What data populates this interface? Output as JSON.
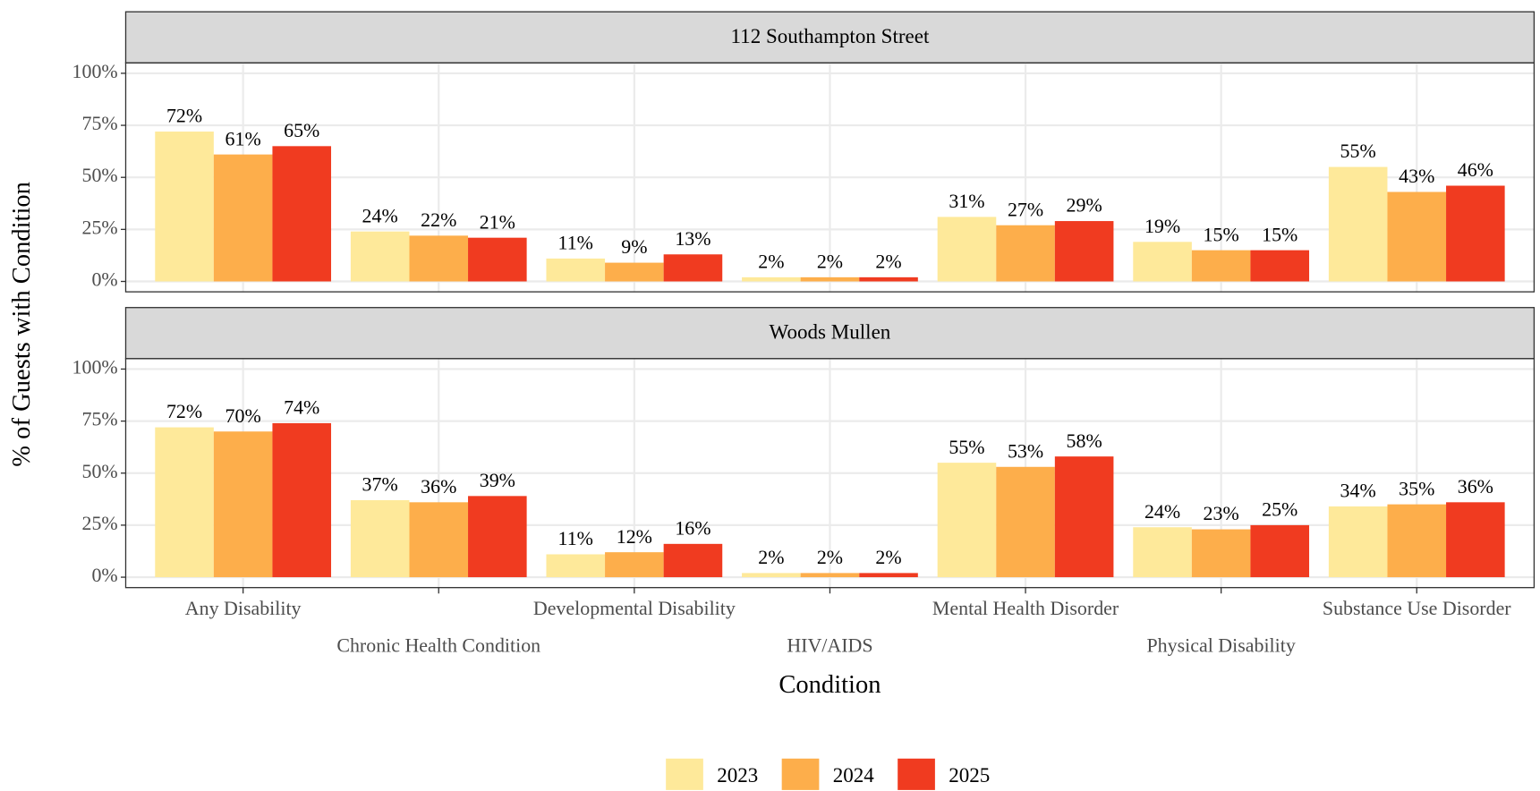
{
  "chart_data": {
    "type": "bar",
    "y_label": "% of Guests with Condition",
    "x_label": "Condition",
    "categories": [
      "Any Disability",
      "Chronic Health Condition",
      "Developmental Disability",
      "HIV/AIDS",
      "Mental Health Disorder",
      "Physical Disability",
      "Substance Use Disorder"
    ],
    "series": [
      {
        "name": "2023",
        "color": "#fee99a"
      },
      {
        "name": "2024",
        "color": "#fdae4b"
      },
      {
        "name": "2025",
        "color": "#f03b20"
      }
    ],
    "ylim": [
      -5,
      105
    ],
    "yticks": [
      {
        "value": 0,
        "label": "0%"
      },
      {
        "value": 25,
        "label": "25%"
      },
      {
        "value": 50,
        "label": "50%"
      },
      {
        "value": 75,
        "label": "75%"
      },
      {
        "value": 100,
        "label": "100%"
      }
    ],
    "grid": true,
    "legend": "bottom",
    "facets": [
      {
        "title": "112 Southampton Street",
        "values": [
          [
            72,
            24,
            11,
            2,
            31,
            19,
            55
          ],
          [
            61,
            22,
            9,
            2,
            27,
            15,
            43
          ],
          [
            65,
            21,
            13,
            2,
            29,
            15,
            46
          ]
        ],
        "value_labels": [
          [
            "72%",
            "24%",
            "11%",
            "2%",
            "31%",
            "19%",
            "55%"
          ],
          [
            "61%",
            "22%",
            "9%",
            "2%",
            "27%",
            "15%",
            "43%"
          ],
          [
            "65%",
            "21%",
            "13%",
            "2%",
            "29%",
            "15%",
            "46%"
          ]
        ]
      },
      {
        "title": "Woods Mullen",
        "values": [
          [
            72,
            37,
            11,
            2,
            55,
            24,
            34
          ],
          [
            70,
            36,
            12,
            2,
            53,
            23,
            35
          ],
          [
            74,
            39,
            16,
            2,
            58,
            25,
            36
          ]
        ],
        "value_labels": [
          [
            "72%",
            "37%",
            "11%",
            "2%",
            "55%",
            "24%",
            "34%"
          ],
          [
            "70%",
            "36%",
            "12%",
            "2%",
            "53%",
            "23%",
            "35%"
          ],
          [
            "74%",
            "39%",
            "16%",
            "2%",
            "58%",
            "25%",
            "36%"
          ]
        ]
      }
    ]
  }
}
